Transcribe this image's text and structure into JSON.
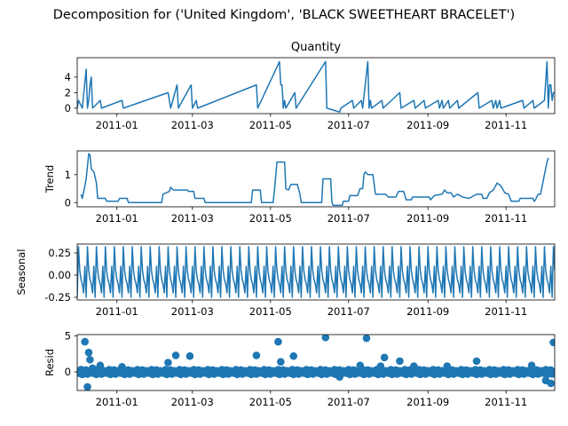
{
  "figure": {
    "suptitle": "Decomposition for ('United Kingdom', 'BLACK SWEETHEART BRACELET')",
    "line_color": "#1f77b4"
  },
  "chart_data": [
    {
      "type": "line",
      "title": "Quantity",
      "ylabel": "",
      "xlim": [
        "2010-12-01",
        "2011-12-09"
      ],
      "ylim": [
        -0.7,
        6.5
      ],
      "yticks": [
        0,
        2,
        4
      ],
      "xticks": [
        "2011-01-01",
        "2011-03-01",
        "2011-05-01",
        "2011-07-01",
        "2011-09-01",
        "2011-11-01"
      ],
      "xticklabels": [
        "2011-01",
        "2011-03",
        "2011-05",
        "2011-07",
        "2011-09",
        "2011-11"
      ],
      "baseline": 0,
      "points": [
        [
          "2010-12-02",
          1
        ],
        [
          "2010-12-05",
          0
        ],
        [
          "2010-12-08",
          5
        ],
        [
          "2010-12-09",
          0
        ],
        [
          "2010-12-10",
          1
        ],
        [
          "2010-12-11",
          3
        ],
        [
          "2010-12-12",
          4
        ],
        [
          "2010-12-13",
          0
        ],
        [
          "2010-12-19",
          1
        ],
        [
          "2010-12-20",
          0
        ],
        [
          "2011-01-05",
          1
        ],
        [
          "2011-01-06",
          0
        ],
        [
          "2011-02-10",
          2
        ],
        [
          "2011-02-11",
          1
        ],
        [
          "2011-02-12",
          0
        ],
        [
          "2011-02-17",
          3
        ],
        [
          "2011-02-18",
          0
        ],
        [
          "2011-02-28",
          3
        ],
        [
          "2011-03-01",
          0
        ],
        [
          "2011-03-04",
          1
        ],
        [
          "2011-03-05",
          0
        ],
        [
          "2011-04-20",
          3
        ],
        [
          "2011-04-21",
          0
        ],
        [
          "2011-05-08",
          6
        ],
        [
          "2011-05-09",
          3
        ],
        [
          "2011-05-10",
          3
        ],
        [
          "2011-05-11",
          0
        ],
        [
          "2011-05-12",
          1
        ],
        [
          "2011-05-13",
          0
        ],
        [
          "2011-05-20",
          2
        ],
        [
          "2011-05-21",
          0
        ],
        [
          "2011-06-13",
          6
        ],
        [
          "2011-06-14",
          0
        ],
        [
          "2011-06-24",
          -0.5
        ],
        [
          "2011-06-25",
          0
        ],
        [
          "2011-07-04",
          1
        ],
        [
          "2011-07-05",
          0
        ],
        [
          "2011-07-11",
          1
        ],
        [
          "2011-07-12",
          0
        ],
        [
          "2011-07-16",
          6
        ],
        [
          "2011-07-17",
          0
        ],
        [
          "2011-07-18",
          1
        ],
        [
          "2011-07-19",
          0
        ],
        [
          "2011-07-27",
          1
        ],
        [
          "2011-07-28",
          0
        ],
        [
          "2011-08-10",
          2
        ],
        [
          "2011-08-11",
          0
        ],
        [
          "2011-08-21",
          1
        ],
        [
          "2011-08-22",
          0
        ],
        [
          "2011-08-29",
          1
        ],
        [
          "2011-08-30",
          0
        ],
        [
          "2011-09-09",
          1
        ],
        [
          "2011-09-10",
          0
        ],
        [
          "2011-09-12",
          1
        ],
        [
          "2011-09-13",
          0
        ],
        [
          "2011-09-17",
          1
        ],
        [
          "2011-09-18",
          0
        ],
        [
          "2011-09-24",
          1
        ],
        [
          "2011-09-25",
          0
        ],
        [
          "2011-10-10",
          2
        ],
        [
          "2011-10-11",
          0
        ],
        [
          "2011-10-21",
          1
        ],
        [
          "2011-10-22",
          0
        ],
        [
          "2011-10-24",
          1
        ],
        [
          "2011-10-25",
          0
        ],
        [
          "2011-10-27",
          1
        ],
        [
          "2011-10-28",
          0
        ],
        [
          "2011-11-14",
          1
        ],
        [
          "2011-11-15",
          0
        ],
        [
          "2011-11-22",
          1
        ],
        [
          "2011-11-23",
          0
        ],
        [
          "2011-12-01",
          1
        ],
        [
          "2011-12-03",
          6
        ],
        [
          "2011-12-04",
          0
        ],
        [
          "2011-12-05",
          3
        ],
        [
          "2011-12-06",
          3
        ],
        [
          "2011-12-07",
          1
        ],
        [
          "2011-12-08",
          2
        ],
        [
          "2011-12-09",
          2
        ]
      ]
    },
    {
      "type": "line",
      "title": "",
      "ylabel": "Trend",
      "xlim": [
        "2010-12-01",
        "2011-12-09"
      ],
      "ylim": [
        -0.15,
        1.85
      ],
      "yticks": [
        0,
        1
      ],
      "xticks": [
        "2011-01-01",
        "2011-03-01",
        "2011-05-01",
        "2011-07-01",
        "2011-09-01",
        "2011-11-01"
      ],
      "xticklabels": [
        "2011-01",
        "2011-03",
        "2011-05",
        "2011-07",
        "2011-09",
        "2011-11"
      ],
      "points": [
        [
          "2010-12-04",
          0.3
        ],
        [
          "2010-12-05",
          0.15
        ],
        [
          "2010-12-07",
          0.6
        ],
        [
          "2010-12-08",
          0.85
        ],
        [
          "2010-12-09",
          1.3
        ],
        [
          "2010-12-10",
          1.75
        ],
        [
          "2010-12-11",
          1.7
        ],
        [
          "2010-12-12",
          1.2
        ],
        [
          "2010-12-14",
          1.1
        ],
        [
          "2010-12-16",
          0.7
        ],
        [
          "2010-12-17",
          0.15
        ],
        [
          "2010-12-23",
          0.15
        ],
        [
          "2010-12-24",
          0.05
        ],
        [
          "2011-01-02",
          0.05
        ],
        [
          "2011-01-03",
          0.15
        ],
        [
          "2011-01-09",
          0.15
        ],
        [
          "2011-01-10",
          0
        ],
        [
          "2011-02-05",
          0
        ],
        [
          "2011-02-06",
          0.3
        ],
        [
          "2011-02-11",
          0.4
        ],
        [
          "2011-02-12",
          0.55
        ],
        [
          "2011-02-14",
          0.45
        ],
        [
          "2011-02-25",
          0.45
        ],
        [
          "2011-02-26",
          0.4
        ],
        [
          "2011-03-02",
          0.4
        ],
        [
          "2011-03-03",
          0.15
        ],
        [
          "2011-03-10",
          0.15
        ],
        [
          "2011-03-11",
          0
        ],
        [
          "2011-04-16",
          0
        ],
        [
          "2011-04-17",
          0.45
        ],
        [
          "2011-04-23",
          0.45
        ],
        [
          "2011-04-24",
          0
        ],
        [
          "2011-05-03",
          0
        ],
        [
          "2011-05-04",
          0.4
        ],
        [
          "2011-05-05",
          0.9
        ],
        [
          "2011-05-06",
          1.45
        ],
        [
          "2011-05-12",
          1.45
        ],
        [
          "2011-05-13",
          0.5
        ],
        [
          "2011-05-15",
          0.45
        ],
        [
          "2011-05-17",
          0.65
        ],
        [
          "2011-05-22",
          0.65
        ],
        [
          "2011-05-24",
          0.3
        ],
        [
          "2011-05-25",
          0
        ],
        [
          "2011-06-10",
          0
        ],
        [
          "2011-06-11",
          0.85
        ],
        [
          "2011-06-17",
          0.85
        ],
        [
          "2011-06-18",
          0
        ],
        [
          "2011-06-19",
          -0.1
        ],
        [
          "2011-06-26",
          -0.1
        ],
        [
          "2011-06-27",
          0.05
        ],
        [
          "2011-07-01",
          0.05
        ],
        [
          "2011-07-02",
          0.25
        ],
        [
          "2011-07-08",
          0.25
        ],
        [
          "2011-07-10",
          0.5
        ],
        [
          "2011-07-12",
          0.5
        ],
        [
          "2011-07-13",
          1.0
        ],
        [
          "2011-07-14",
          1.1
        ],
        [
          "2011-07-16",
          1.0
        ],
        [
          "2011-07-20",
          1.0
        ],
        [
          "2011-07-22",
          0.3
        ],
        [
          "2011-07-30",
          0.3
        ],
        [
          "2011-08-01",
          0.2
        ],
        [
          "2011-08-07",
          0.2
        ],
        [
          "2011-08-09",
          0.4
        ],
        [
          "2011-08-13",
          0.4
        ],
        [
          "2011-08-15",
          0.1
        ],
        [
          "2011-08-19",
          0.1
        ],
        [
          "2011-08-20",
          0.2
        ],
        [
          "2011-09-02",
          0.2
        ],
        [
          "2011-09-03",
          0.1
        ],
        [
          "2011-09-06",
          0.25
        ],
        [
          "2011-09-12",
          0.3
        ],
        [
          "2011-09-14",
          0.45
        ],
        [
          "2011-09-16",
          0.35
        ],
        [
          "2011-09-19",
          0.35
        ],
        [
          "2011-09-21",
          0.2
        ],
        [
          "2011-09-24",
          0.3
        ],
        [
          "2011-09-28",
          0.2
        ],
        [
          "2011-10-03",
          0.15
        ],
        [
          "2011-10-07",
          0.25
        ],
        [
          "2011-10-09",
          0.3
        ],
        [
          "2011-10-13",
          0.3
        ],
        [
          "2011-10-14",
          0.15
        ],
        [
          "2011-10-17",
          0.15
        ],
        [
          "2011-10-19",
          0.35
        ],
        [
          "2011-10-22",
          0.45
        ],
        [
          "2011-10-25",
          0.7
        ],
        [
          "2011-10-28",
          0.6
        ],
        [
          "2011-10-31",
          0.35
        ],
        [
          "2011-11-03",
          0.3
        ],
        [
          "2011-11-05",
          0.05
        ],
        [
          "2011-11-11",
          0.05
        ],
        [
          "2011-11-12",
          0.15
        ],
        [
          "2011-11-22",
          0.15
        ],
        [
          "2011-11-23",
          0.05
        ],
        [
          "2011-11-24",
          0.1
        ],
        [
          "2011-11-26",
          0.3
        ],
        [
          "2011-11-28",
          0.3
        ],
        [
          "2011-12-01",
          1.0
        ],
        [
          "2011-12-03",
          1.45
        ],
        [
          "2011-12-04",
          1.6
        ]
      ]
    },
    {
      "type": "line",
      "title": "",
      "ylabel": "Seasonal",
      "xlim": [
        "2010-12-01",
        "2011-12-09"
      ],
      "ylim": [
        -0.28,
        0.35
      ],
      "yticks": [
        0.25,
        0.0,
        -0.25
      ],
      "yticklabels": [
        "0.25",
        "0.00",
        "-0.25"
      ],
      "xticks": [
        "2011-01-01",
        "2011-03-01",
        "2011-05-01",
        "2011-07-01",
        "2011-09-01",
        "2011-11-01"
      ],
      "xticklabels": [
        "2011-01",
        "2011-03",
        "2011-05",
        "2011-07",
        "2011-09",
        "2011-11"
      ],
      "period_days": 7,
      "start_date": "2010-12-01",
      "pattern": [
        -0.25,
        0.32,
        0.05,
        -0.05,
        -0.1,
        -0.2,
        0.1
      ]
    },
    {
      "type": "scatter",
      "title": "",
      "ylabel": "Resid",
      "xlim": [
        "2010-12-01",
        "2011-12-09"
      ],
      "ylim": [
        -2.6,
        5.2
      ],
      "yticks": [
        0,
        5
      ],
      "xticks": [
        "2011-01-01",
        "2011-03-01",
        "2011-05-01",
        "2011-07-01",
        "2011-09-01",
        "2011-11-01"
      ],
      "xticklabels": [
        "2011-01",
        "2011-03",
        "2011-05",
        "2011-07",
        "2011-09",
        "2011-11"
      ],
      "hline": 0,
      "baseline_pattern": [
        0.1,
        -0.2,
        0.3,
        -0.35,
        0.2,
        -0.05,
        0.25,
        -0.3,
        0.0,
        0.15,
        -0.15
      ],
      "points": [
        [
          "2010-12-07",
          4.2
        ],
        [
          "2010-12-10",
          2.7
        ],
        [
          "2010-12-11",
          1.7
        ],
        [
          "2010-12-09",
          -2.1
        ],
        [
          "2010-12-04",
          0.3
        ],
        [
          "2010-12-13",
          0.5
        ],
        [
          "2010-12-19",
          0.9
        ],
        [
          "2011-01-05",
          0.7
        ],
        [
          "2011-02-10",
          1.3
        ],
        [
          "2011-02-16",
          2.3
        ],
        [
          "2011-02-27",
          2.2
        ],
        [
          "2011-04-20",
          2.3
        ],
        [
          "2011-05-07",
          4.2
        ],
        [
          "2011-05-09",
          1.4
        ],
        [
          "2011-05-19",
          2.2
        ],
        [
          "2011-06-13",
          4.8
        ],
        [
          "2011-06-24",
          -0.7
        ],
        [
          "2011-07-15",
          4.7
        ],
        [
          "2011-07-10",
          0.9
        ],
        [
          "2011-07-26",
          0.8
        ],
        [
          "2011-07-29",
          2.0
        ],
        [
          "2011-08-10",
          1.5
        ],
        [
          "2011-08-21",
          0.8
        ],
        [
          "2011-09-16",
          0.8
        ],
        [
          "2011-10-09",
          1.5
        ],
        [
          "2011-11-21",
          0.9
        ],
        [
          "2011-12-02",
          -1.2
        ],
        [
          "2011-12-06",
          -1.6
        ],
        [
          "2011-12-08",
          4.1
        ]
      ]
    }
  ]
}
